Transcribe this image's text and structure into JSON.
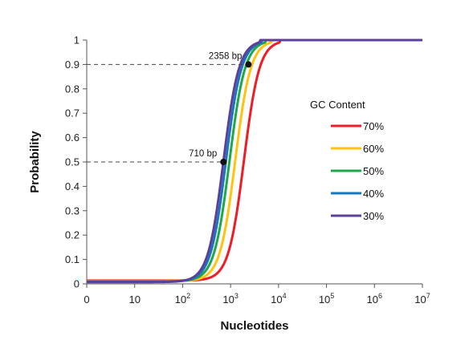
{
  "chart_data": {
    "type": "line",
    "xlabel": "Nucleotides",
    "ylabel": "Probability",
    "x_scale": "log",
    "xlim": [
      1,
      10000000
    ],
    "ylim": [
      0,
      1
    ],
    "x_ticks": [
      {
        "value": 1,
        "base": "0",
        "exp": ""
      },
      {
        "value": 10,
        "base": "10",
        "exp": ""
      },
      {
        "value": 100,
        "base": "10",
        "exp": "2"
      },
      {
        "value": 1000,
        "base": "10",
        "exp": "3"
      },
      {
        "value": 10000,
        "base": "10",
        "exp": "4"
      },
      {
        "value": 100000,
        "base": "10",
        "exp": "5"
      },
      {
        "value": 1000000,
        "base": "10",
        "exp": "6"
      },
      {
        "value": 10000000,
        "base": "10",
        "exp": "7"
      }
    ],
    "y_ticks": [
      "0",
      "0.1",
      "0.2",
      "0.3",
      "0.4",
      "0.5",
      "0.6",
      "0.7",
      "0.8",
      "0.9",
      "1"
    ],
    "grid": false,
    "legend_title": "GC Content",
    "legend_position": "right",
    "series": [
      {
        "name": "70%",
        "color": "#ee1c25",
        "midpoint": 1900,
        "points": [
          [
            1,
            0.005
          ],
          [
            10,
            0.012
          ],
          [
            100,
            0.06
          ],
          [
            300,
            0.18
          ],
          [
            1000,
            0.36
          ],
          [
            1900,
            0.5
          ],
          [
            3000,
            0.66
          ],
          [
            5000,
            0.87
          ],
          [
            8000,
            0.99
          ],
          [
            10000,
            1
          ],
          [
            10000000,
            1
          ]
        ]
      },
      {
        "name": "60%",
        "color": "#ffc20e",
        "midpoint": 1250,
        "points": [
          [
            1,
            0.006
          ],
          [
            10,
            0.015
          ],
          [
            100,
            0.08
          ],
          [
            300,
            0.22
          ],
          [
            700,
            0.36
          ],
          [
            1250,
            0.5
          ],
          [
            2200,
            0.7
          ],
          [
            3500,
            0.88
          ],
          [
            6000,
            0.99
          ],
          [
            8000,
            1
          ],
          [
            10000000,
            1
          ]
        ]
      },
      {
        "name": "50%",
        "color": "#1ea84a",
        "midpoint": 950,
        "points": [
          [
            1,
            0.007
          ],
          [
            10,
            0.018
          ],
          [
            100,
            0.09
          ],
          [
            300,
            0.26
          ],
          [
            600,
            0.4
          ],
          [
            950,
            0.5
          ],
          [
            1800,
            0.76
          ],
          [
            3000,
            0.92
          ],
          [
            5000,
            1
          ],
          [
            10000000,
            1
          ]
        ]
      },
      {
        "name": "40%",
        "color": "#1b75bc",
        "midpoint": 800,
        "points": [
          [
            1,
            0.008
          ],
          [
            10,
            0.02
          ],
          [
            100,
            0.1
          ],
          [
            300,
            0.28
          ],
          [
            550,
            0.42
          ],
          [
            800,
            0.5
          ],
          [
            1600,
            0.78
          ],
          [
            2700,
            0.94
          ],
          [
            4500,
            1
          ],
          [
            10000000,
            1
          ]
        ]
      },
      {
        "name": "30%",
        "color": "#5b3f99",
        "midpoint": 710,
        "points": [
          [
            1,
            0.008
          ],
          [
            10,
            0.02
          ],
          [
            100,
            0.1
          ],
          [
            300,
            0.3
          ],
          [
            500,
            0.42
          ],
          [
            710,
            0.5
          ],
          [
            1500,
            0.8
          ],
          [
            2358,
            0.9
          ],
          [
            4000,
            1
          ],
          [
            10000000,
            1
          ]
        ]
      }
    ],
    "annotations": [
      {
        "label": "2358 bp",
        "x": 2358,
        "y": 0.9
      },
      {
        "label": "710 bp",
        "x": 710,
        "y": 0.5
      }
    ]
  }
}
